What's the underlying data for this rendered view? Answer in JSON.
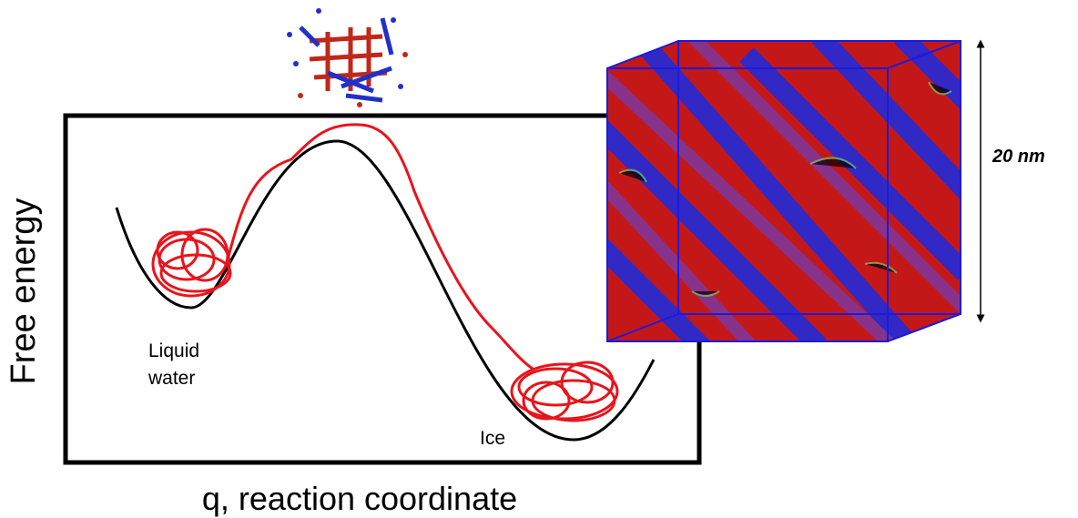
{
  "axes": {
    "y_label": "Free energy",
    "x_label": "q, reaction coordinate"
  },
  "states": {
    "liquid": [
      "Liquid",
      "water"
    ],
    "ice": "Ice"
  },
  "scale_label": "20 nm"
}
